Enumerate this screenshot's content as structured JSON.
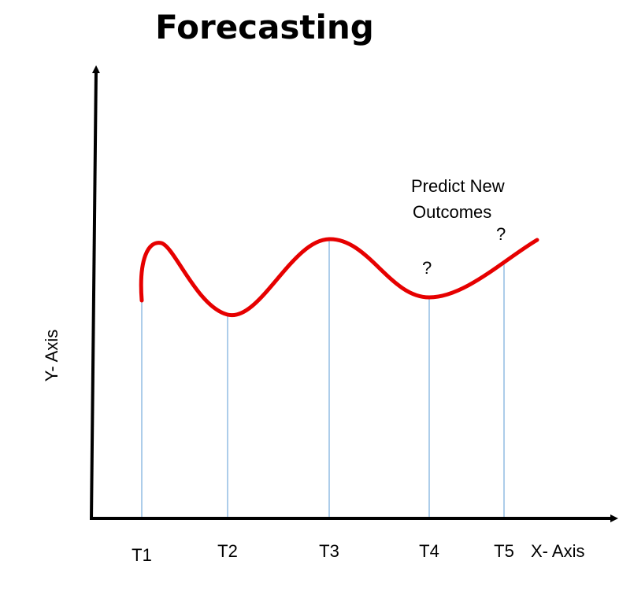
{
  "title": "Forecasting",
  "y_axis_label": "Y- Axis",
  "x_axis_label": "X- Axis",
  "ticks": [
    "T1",
    "T2",
    "T3",
    "T4",
    "T5"
  ],
  "annotation": {
    "line1": "Predict New",
    "line2": "Outcomes"
  },
  "unknown_markers": [
    "?",
    "?"
  ],
  "colors": {
    "curve": "#e60000",
    "guide": "#5b9bd5",
    "axis": "#000000"
  }
}
